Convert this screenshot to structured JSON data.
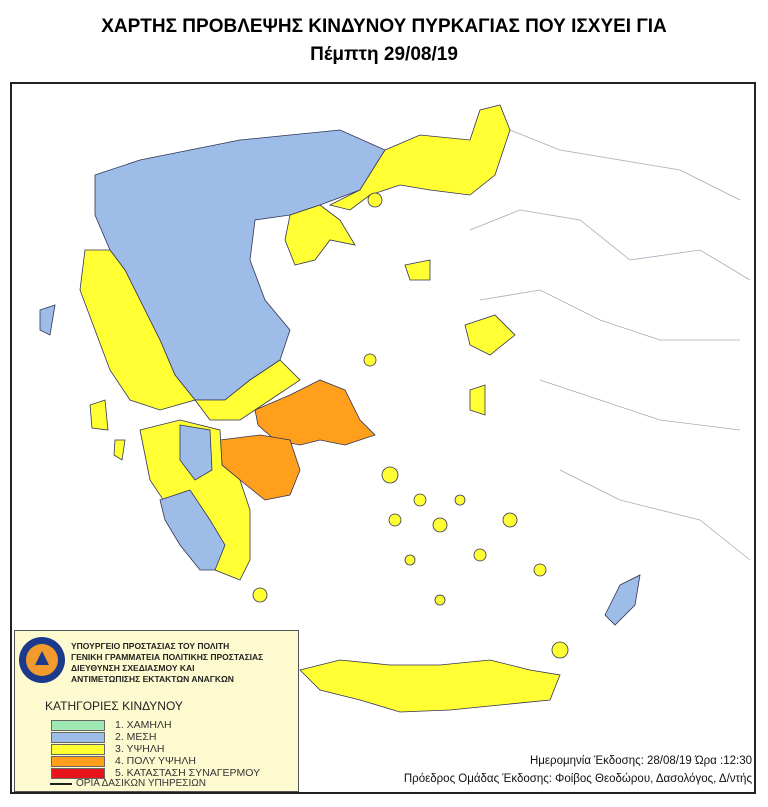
{
  "title": {
    "line1": "ΧΑΡΤΗΣ ΠΡΟΒΛΕΨΗΣ ΚΙΝΔΥΝΟΥ ΠΥΡΚΑΓΙΑΣ ΠΟΥ ΙΣΧΥΕΙ ΓΙΑ",
    "line2": "Πέμπτη 29/08/19"
  },
  "legend": {
    "organization": [
      "ΥΠΟΥΡΓΕΙΟ ΠΡΟΣΤΑΣΙΑΣ ΤΟΥ ΠΟΛΙΤΗ",
      "ΓΕΝΙΚΗ ΓΡΑΜΜΑΤΕΙΑ ΠΟΛΙΤΙΚΗΣ ΠΡΟΣΤΑΣΙΑΣ",
      "ΔΙΕΥΘΥΝΣΗ ΣΧΕΔΙΑΣΜΟΥ ΚΑΙ",
      "ΑΝΤΙΜΕΤΩΠΙΣΗΣ ΕΚΤΑΚΤΩΝ ΑΝΑΓΚΩΝ"
    ],
    "seal_text": "ΠΟΛΙΤΙΚΗ ΠΡΟΣΤΑΣΙΑ ΕΛΛΑΔΑ",
    "categories_title": "ΚΑΤΗΓΟΡΙΕΣ ΚΙΝΔΥΝΟΥ",
    "categories": [
      {
        "label": "1. ΧΑΜΗΛΗ",
        "color": "#9ee8b4"
      },
      {
        "label": "2. ΜΕΣΗ",
        "color": "#9dbde8"
      },
      {
        "label": "3. ΥΨΗΛΗ",
        "color": "#ffff33"
      },
      {
        "label": "4. ΠΟΛΥ ΥΨΗΛΗ",
        "color": "#ff9f1c"
      },
      {
        "label": "5. ΚΑΤΑΣΤΑΣΗ ΣΥΝΑΓΕΡΜΟΥ",
        "color": "#e8141c"
      }
    ],
    "boundary_label": "ΟΡΙΑ ΔΑΣΙΚΩΝ ΥΠΗΡΕΣΙΩΝ"
  },
  "issue": {
    "date_line": "Ημερομηνία Έκδοσης: 28/08/19  Ώρα :12:30",
    "author_line": "Πρόεδρος Ομάδας Έκδοσης: Φοίβος Θεοδώρου,  Δασολόγος, Δ/ντής"
  },
  "map_regions": {
    "medium": [
      "Northern Greece",
      "Western Macedonia",
      "Thessaly",
      "Eastern Peloponnese",
      "Messinia",
      "Rhodes",
      "Skyros"
    ],
    "high": [
      "Thrace",
      "Chalkidiki",
      "Epirus",
      "Western Greece",
      "Aegean islands",
      "Crete"
    ],
    "very_high": [
      "Attica",
      "Argolida",
      "Corinthia",
      "Southern Evia"
    ]
  }
}
